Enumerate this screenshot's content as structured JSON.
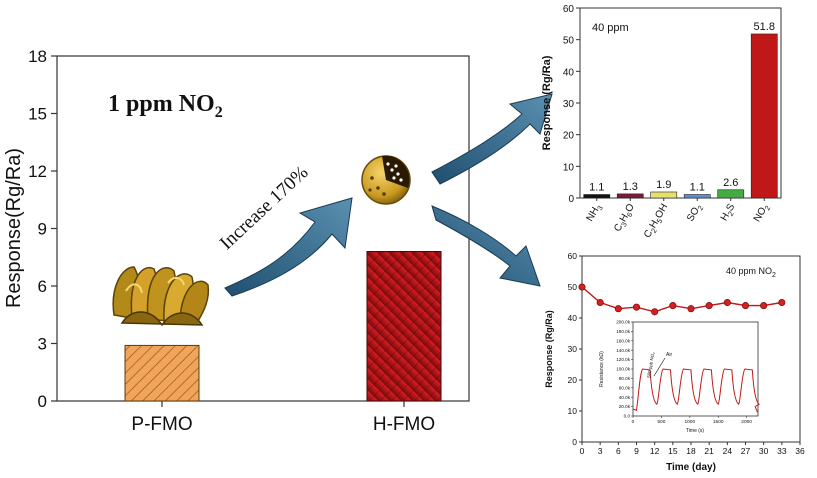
{
  "main_chart": {
    "ylabel": "Response(Rg/Ra)",
    "ylim": [
      0,
      18
    ],
    "yticks": [
      "0",
      "3",
      "6",
      "9",
      "12",
      "15",
      "18"
    ],
    "annotation_main": "1 ppm NO",
    "annotation_sub": "2",
    "increase_label": "Increase 170%",
    "colors": {
      "p_fmo": "#f0a050",
      "h_fmo": "#c0141c",
      "arrow": "#2f5f7f"
    }
  },
  "chart_data": [
    {
      "type": "bar",
      "categories": [
        "P-FMO",
        "H-FMO"
      ],
      "values": [
        2.9,
        7.8
      ],
      "title": "",
      "xlabel": "",
      "ylabel": "Response(Rg/Ra)",
      "ylim": [
        0,
        18
      ]
    },
    {
      "type": "bar",
      "categories": [
        "NH3",
        "C3H6O",
        "C2H5OH",
        "SO2",
        "H2S",
        "NO2"
      ],
      "values": [
        1.1,
        1.3,
        1.9,
        1.1,
        2.6,
        51.8
      ],
      "value_labels": [
        "1.1",
        "1.3",
        "1.9",
        "1.1",
        "2.6",
        "51.8"
      ],
      "colors": [
        "#111111",
        "#7a1a3a",
        "#e6df6e",
        "#5a8fd0",
        "#44aa44",
        "#c01818"
      ],
      "title": "",
      "annotation": "40 ppm",
      "xlabel": "",
      "ylabel": "Response (Rg/Ra)",
      "ylim": [
        0,
        60
      ],
      "yticks": [
        "0",
        "10",
        "20",
        "30",
        "40",
        "50",
        "60"
      ]
    },
    {
      "type": "line",
      "x": [
        0,
        3,
        6,
        9,
        12,
        15,
        18,
        21,
        24,
        27,
        30,
        33
      ],
      "y": [
        50,
        45,
        43,
        43.5,
        42,
        44,
        43,
        44,
        45,
        44,
        44,
        45
      ],
      "annotation": "40 ppm NO",
      "annotation_sub": "2",
      "xlabel": "Time (day)",
      "ylabel": "Response (Rg/Ra)",
      "xlim": [
        0,
        36
      ],
      "ylim": [
        0,
        60
      ],
      "xticks": [
        "0",
        "3",
        "6",
        "9",
        "12",
        "15",
        "18",
        "21",
        "24",
        "27",
        "30",
        "33",
        "36"
      ],
      "yticks": [
        "0",
        "10",
        "20",
        "30",
        "40",
        "50",
        "60"
      ],
      "inset": {
        "type": "line",
        "xlabel": "Time (s)",
        "ylabel": "Resistance (kΩ)",
        "xlim": [
          0,
          2200
        ],
        "ylim": [
          0,
          200000
        ],
        "xticks": [
          "0",
          "500",
          "1000",
          "1500",
          "2000"
        ],
        "yticks": [
          "0.0",
          "20.0k",
          "40.0k",
          "60.0k",
          "80.0k",
          "100.0k",
          "120.0k",
          "140.0k",
          "160.0k",
          "180.0k",
          "200.0k"
        ],
        "air_label": "Air",
        "gas_label": "500 ppb NO₂"
      }
    }
  ]
}
